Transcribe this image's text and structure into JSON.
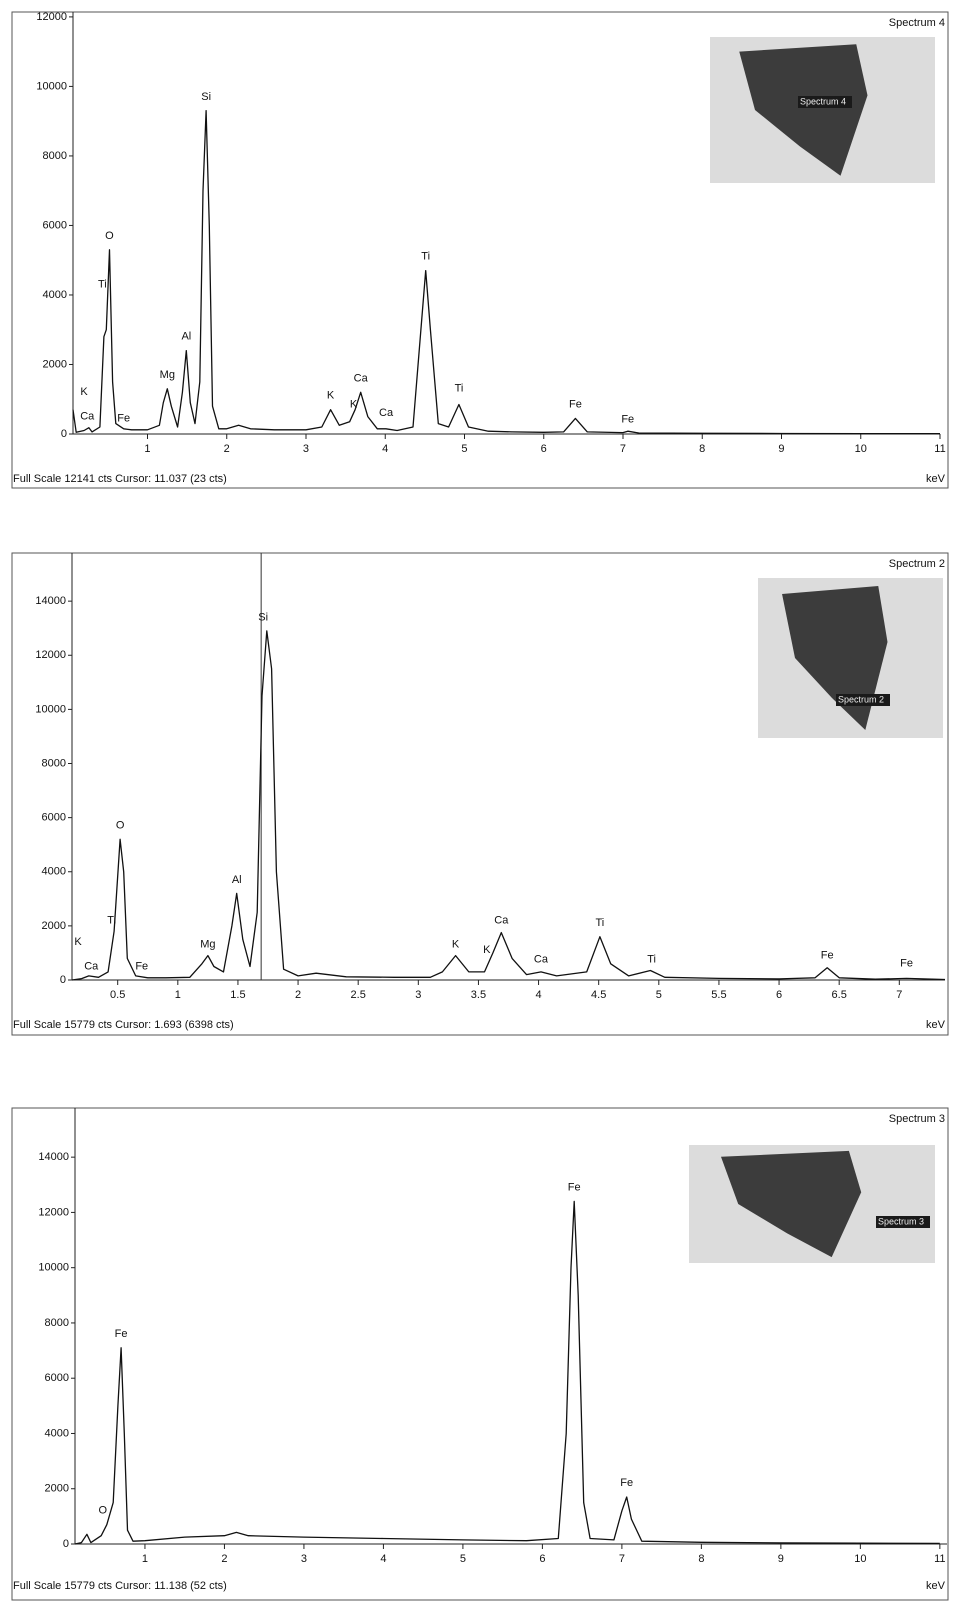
{
  "chart_data": [
    {
      "type": "line",
      "title": "Spectrum 4",
      "inset_label": "Spectrum 4",
      "footer": "Full Scale 12141 cts Cursor: 11.037  (23 cts)",
      "x_label": "keV",
      "color": "#111111",
      "cursor": 11.037,
      "xlim": [
        0.06,
        11
      ],
      "ylim": [
        0,
        12141
      ],
      "xticks": [
        1,
        2,
        3,
        4,
        5,
        6,
        7,
        8,
        9,
        10,
        11
      ],
      "yticks": [
        0,
        2000,
        4000,
        6000,
        8000,
        10000,
        12000
      ],
      "x": [
        0.06,
        0.1,
        0.2,
        0.26,
        0.3,
        0.4,
        0.45,
        0.48,
        0.52,
        0.56,
        0.6,
        0.7,
        0.8,
        1.0,
        1.15,
        1.2,
        1.25,
        1.3,
        1.38,
        1.44,
        1.49,
        1.54,
        1.6,
        1.66,
        1.7,
        1.74,
        1.78,
        1.82,
        1.9,
        2.0,
        2.15,
        2.3,
        2.6,
        3.0,
        3.2,
        3.31,
        3.42,
        3.55,
        3.62,
        3.69,
        3.78,
        3.9,
        4.01,
        4.15,
        4.35,
        4.45,
        4.51,
        4.57,
        4.67,
        4.8,
        4.93,
        5.05,
        5.3,
        5.6,
        6.0,
        6.25,
        6.4,
        6.55,
        7.0,
        7.06,
        7.2,
        8,
        9,
        10,
        11
      ],
      "values": [
        700,
        50,
        100,
        180,
        60,
        200,
        2800,
        3000,
        5300,
        1500,
        300,
        150,
        120,
        120,
        250,
        900,
        1300,
        800,
        200,
        1200,
        2400,
        900,
        300,
        1500,
        7000,
        9300,
        6000,
        800,
        150,
        150,
        250,
        150,
        120,
        120,
        200,
        700,
        250,
        350,
        700,
        1200,
        500,
        150,
        150,
        100,
        200,
        3000,
        4700,
        3000,
        300,
        200,
        850,
        200,
        80,
        60,
        50,
        60,
        450,
        60,
        40,
        80,
        30,
        20,
        15,
        10,
        10
      ],
      "annotations": [
        {
          "text": "K",
          "x": 0.2,
          "y": 1200
        },
        {
          "text": "Ca",
          "x": 0.24,
          "y": 500
        },
        {
          "text": "Fe",
          "x": 0.7,
          "y": 450
        },
        {
          "text": "Ti",
          "x": 0.43,
          "y": 4300
        },
        {
          "text": "O",
          "x": 0.52,
          "y": 5700
        },
        {
          "text": "Mg",
          "x": 1.25,
          "y": 1700
        },
        {
          "text": "Al",
          "x": 1.49,
          "y": 2800
        },
        {
          "text": "Si",
          "x": 1.74,
          "y": 9700
        },
        {
          "text": "K",
          "x": 3.31,
          "y": 1100
        },
        {
          "text": "K",
          "x": 3.6,
          "y": 850
        },
        {
          "text": "Ca",
          "x": 3.69,
          "y": 1600
        },
        {
          "text": "Ca",
          "x": 4.01,
          "y": 600
        },
        {
          "text": "Ti",
          "x": 4.51,
          "y": 5100
        },
        {
          "text": "Ti",
          "x": 4.93,
          "y": 1300
        },
        {
          "text": "Fe",
          "x": 6.4,
          "y": 850
        },
        {
          "text": "Fe",
          "x": 7.06,
          "y": 420
        }
      ]
    },
    {
      "type": "line",
      "title": "Spectrum 2",
      "inset_label": "Spectrum 2",
      "footer": "Full Scale 15779 cts Cursor: 1.693  (6398 cts)",
      "x_label": "keV",
      "color": "#111111",
      "cursor": 1.693,
      "xlim": [
        0.12,
        7.38
      ],
      "ylim": [
        0,
        15779
      ],
      "xticks": [
        0.5,
        1,
        1.5,
        2,
        2.5,
        3,
        3.5,
        4,
        4.5,
        5,
        5.5,
        6,
        6.5,
        7
      ],
      "yticks": [
        0,
        2000,
        4000,
        6000,
        8000,
        10000,
        12000,
        14000
      ],
      "x": [
        0.12,
        0.2,
        0.26,
        0.34,
        0.42,
        0.47,
        0.52,
        0.55,
        0.58,
        0.65,
        0.75,
        0.9,
        1.1,
        1.2,
        1.25,
        1.3,
        1.38,
        1.45,
        1.49,
        1.54,
        1.6,
        1.66,
        1.7,
        1.74,
        1.78,
        1.82,
        1.88,
        2.0,
        2.15,
        2.4,
        2.8,
        3.1,
        3.2,
        3.31,
        3.42,
        3.55,
        3.62,
        3.69,
        3.78,
        3.9,
        4.02,
        4.15,
        4.4,
        4.51,
        4.6,
        4.75,
        4.93,
        5.05,
        5.5,
        6.0,
        6.3,
        6.4,
        6.5,
        6.8,
        7.06,
        7.38
      ],
      "values": [
        0,
        50,
        150,
        100,
        300,
        1800,
        5200,
        4000,
        800,
        150,
        80,
        80,
        100,
        600,
        900,
        500,
        300,
        2000,
        3200,
        1500,
        500,
        2500,
        10500,
        12900,
        11500,
        4000,
        400,
        150,
        250,
        120,
        100,
        100,
        300,
        900,
        300,
        300,
        1000,
        1750,
        800,
        200,
        300,
        150,
        300,
        1600,
        600,
        150,
        350,
        100,
        60,
        40,
        80,
        450,
        80,
        30,
        60,
        20
      ],
      "annotations": [
        {
          "text": "K",
          "x": 0.17,
          "y": 1400
        },
        {
          "text": "Ca",
          "x": 0.28,
          "y": 500
        },
        {
          "text": "Ti",
          "x": 0.45,
          "y": 2200
        },
        {
          "text": "O",
          "x": 0.52,
          "y": 5700
        },
        {
          "text": "Fe",
          "x": 0.7,
          "y": 500
        },
        {
          "text": "Mg",
          "x": 1.25,
          "y": 1300
        },
        {
          "text": "Al",
          "x": 1.49,
          "y": 3700
        },
        {
          "text": "Si",
          "x": 1.71,
          "y": 13400
        },
        {
          "text": "K",
          "x": 3.31,
          "y": 1300
        },
        {
          "text": "K",
          "x": 3.57,
          "y": 1100
        },
        {
          "text": "Ca",
          "x": 3.69,
          "y": 2200
        },
        {
          "text": "Ca",
          "x": 4.02,
          "y": 750
        },
        {
          "text": "Ti",
          "x": 4.51,
          "y": 2100
        },
        {
          "text": "Ti",
          "x": 4.94,
          "y": 750
        },
        {
          "text": "Fe",
          "x": 6.4,
          "y": 900
        },
        {
          "text": "Fe",
          "x": 7.06,
          "y": 600
        }
      ]
    },
    {
      "type": "line",
      "title": "Spectrum 3",
      "inset_label": "Spectrum 3",
      "footer": "Full Scale 15779 cts Cursor: 11.138  (52 cts)",
      "x_label": "keV",
      "color": "#111111",
      "cursor": 11.138,
      "xlim": [
        0.12,
        11.09
      ],
      "ylim": [
        0,
        15779
      ],
      "xticks": [
        1,
        2,
        3,
        4,
        5,
        6,
        7,
        8,
        9,
        10,
        11
      ],
      "yticks": [
        0,
        2000,
        4000,
        6000,
        8000,
        10000,
        12000,
        14000
      ],
      "x": [
        0.12,
        0.2,
        0.27,
        0.32,
        0.45,
        0.52,
        0.6,
        0.66,
        0.7,
        0.74,
        0.78,
        0.85,
        1.0,
        1.5,
        2.0,
        2.15,
        2.3,
        3.0,
        4.0,
        5.0,
        5.8,
        6.2,
        6.3,
        6.36,
        6.4,
        6.45,
        6.52,
        6.6,
        6.9,
        7.0,
        7.06,
        7.12,
        7.25,
        8,
        9,
        10,
        11
      ],
      "values": [
        0,
        50,
        350,
        50,
        300,
        700,
        1500,
        5000,
        7100,
        4000,
        500,
        100,
        120,
        250,
        300,
        420,
        300,
        250,
        200,
        150,
        120,
        200,
        4000,
        10000,
        12400,
        9000,
        1500,
        200,
        150,
        1200,
        1700,
        900,
        100,
        60,
        40,
        30,
        20
      ],
      "annotations": [
        {
          "text": "O",
          "x": 0.47,
          "y": 1200
        },
        {
          "text": "Fe",
          "x": 0.7,
          "y": 7600
        },
        {
          "text": "Fe",
          "x": 6.4,
          "y": 12900
        },
        {
          "text": "Fe",
          "x": 7.06,
          "y": 2200
        }
      ]
    }
  ]
}
